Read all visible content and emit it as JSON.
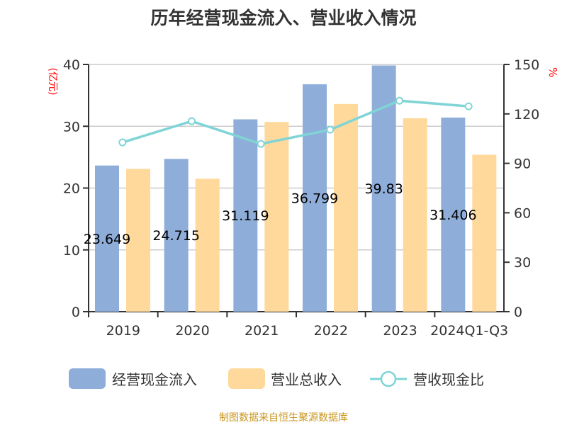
{
  "chart_data": {
    "type": "bar",
    "title": "历年经营现金流入、营业收入情况",
    "categories": [
      "2019",
      "2020",
      "2021",
      "2022",
      "2023",
      "2024Q1-Q3"
    ],
    "ylabel": "(亿元)",
    "y2label": "%",
    "ylim": [
      0,
      40
    ],
    "yticks": [
      "0",
      "10",
      "20",
      "30",
      "40"
    ],
    "y2lim": [
      0,
      150
    ],
    "y2ticks": [
      "0",
      "30",
      "60",
      "90",
      "120",
      "150"
    ],
    "series": [
      {
        "name": "经营现金流入",
        "type": "bar",
        "color": "#8eadd9",
        "values": [
          23.649,
          24.715,
          31.119,
          36.799,
          39.83,
          31.406
        ],
        "labels": [
          "23.649",
          "24.715",
          "31.119",
          "36.799",
          "39.83",
          "31.406"
        ]
      },
      {
        "name": "营业总收入",
        "type": "bar",
        "color": "#fed99b",
        "values": [
          23.1,
          21.5,
          30.7,
          33.6,
          31.3,
          25.4
        ]
      },
      {
        "name": "营收现金比",
        "type": "line",
        "axis": "right",
        "color": "#80d4d6",
        "values": [
          102.7,
          115.6,
          101.8,
          110.4,
          128.0,
          124.6
        ]
      }
    ],
    "legend_position": "bottom",
    "grid": true
  },
  "source": "制图数据来自恒生聚源数据库"
}
